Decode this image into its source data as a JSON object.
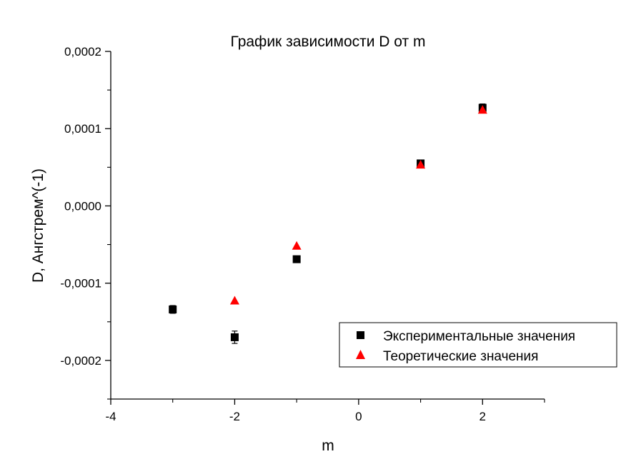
{
  "chart_data": {
    "type": "scatter",
    "title": "График зависимости D от m",
    "xlabel": "m",
    "ylabel": "D, Ангстрем^(-1)",
    "xlim": [
      -4,
      3
    ],
    "ylim": [
      -0.00025,
      0.0002
    ],
    "x_ticks": [
      -4,
      -2,
      0,
      2
    ],
    "x_tick_labels": [
      "-4",
      "-2",
      "0",
      "2"
    ],
    "y_ticks": [
      -0.0002,
      -0.0001,
      0,
      0.0001,
      0.0002
    ],
    "y_tick_labels": [
      "-0,0002",
      "-0,0001",
      "0,0000",
      "0,0001",
      "0,0002"
    ],
    "grid": false,
    "legend_position": "bottom-right",
    "series": [
      {
        "name": "Экспериментальные значения",
        "marker": "square",
        "color": "#000000",
        "points": [
          {
            "x": -3,
            "y": -0.000134,
            "err": 5e-06
          },
          {
            "x": -2,
            "y": -0.00017,
            "err": 8e-06
          },
          {
            "x": -1,
            "y": -6.9e-05,
            "err": 3e-06
          },
          {
            "x": 1,
            "y": 5.5e-05,
            "err": 3e-06
          },
          {
            "x": 2,
            "y": 0.000127,
            "err": 5e-06
          }
        ]
      },
      {
        "name": "Теоретические значения",
        "marker": "triangle",
        "color": "#ff0000",
        "points": [
          {
            "x": -2,
            "y": -0.000123
          },
          {
            "x": -1,
            "y": -5.2e-05
          },
          {
            "x": 1,
            "y": 5.3e-05
          },
          {
            "x": 2,
            "y": 0.000124
          }
        ]
      }
    ]
  }
}
